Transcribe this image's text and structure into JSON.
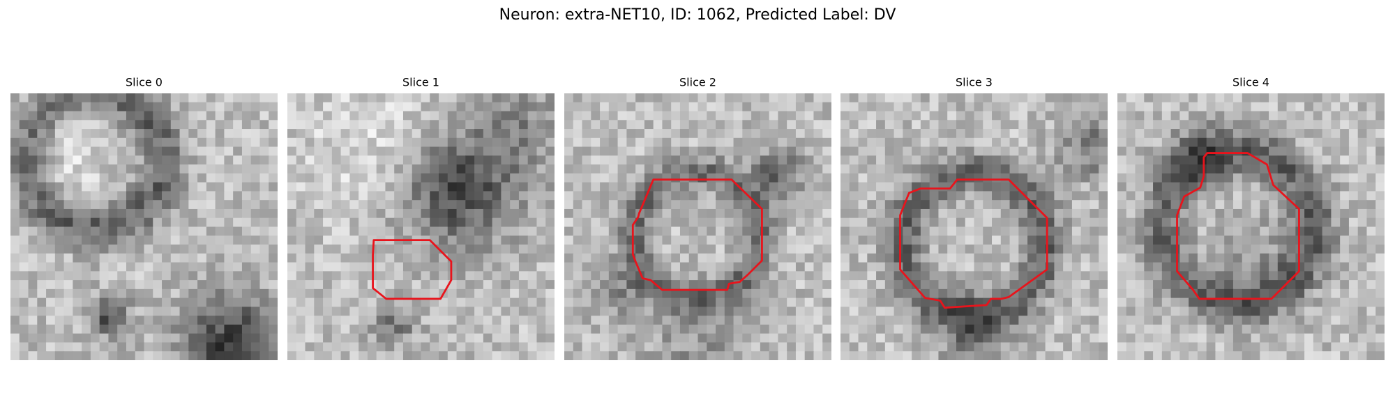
{
  "title": "Neuron: extra-NET10, ID: 1062, Predicted Label: DV",
  "panels": [
    {
      "title": "Slice 0"
    },
    {
      "title": "Slice 1"
    },
    {
      "title": "Slice 2"
    },
    {
      "title": "Slice 3"
    },
    {
      "title": "Slice 4"
    }
  ]
}
